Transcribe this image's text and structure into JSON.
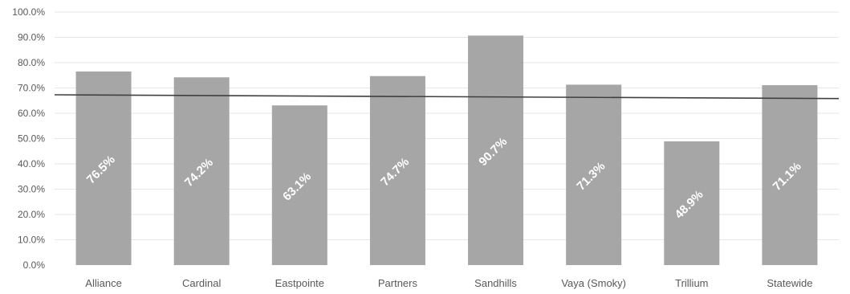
{
  "chart_data": {
    "type": "bar",
    "title": "",
    "xlabel": "",
    "ylabel": "",
    "categories": [
      "Alliance",
      "Cardinal",
      "Eastpointe",
      "Partners",
      "Sandhills",
      "Vaya (Smoky)",
      "Trillium",
      "Statewide"
    ],
    "values": [
      76.5,
      74.2,
      63.1,
      74.7,
      90.7,
      71.3,
      48.9,
      71.1
    ],
    "data_labels": [
      "76.5%",
      "74.2%",
      "63.1%",
      "74.7%",
      "90.7%",
      "71.3%",
      "48.9%",
      "71.1%"
    ],
    "ylim": [
      0,
      100
    ],
    "y_ticks": [
      0,
      10,
      20,
      30,
      40,
      50,
      60,
      70,
      80,
      90,
      100
    ],
    "y_tick_labels": [
      "0.0%",
      "10.0%",
      "20.0%",
      "30.0%",
      "40.0%",
      "50.0%",
      "60.0%",
      "70.0%",
      "80.0%",
      "90.0%",
      "100.0%"
    ],
    "reference_line": {
      "start": 67.3,
      "end": 65.8
    },
    "grid": true,
    "legend": "none",
    "colors": {
      "bar": "#a6a6a6",
      "gridline": "#e6e6e6",
      "reference_line": "#404040",
      "data_label": "#ffffff"
    }
  }
}
